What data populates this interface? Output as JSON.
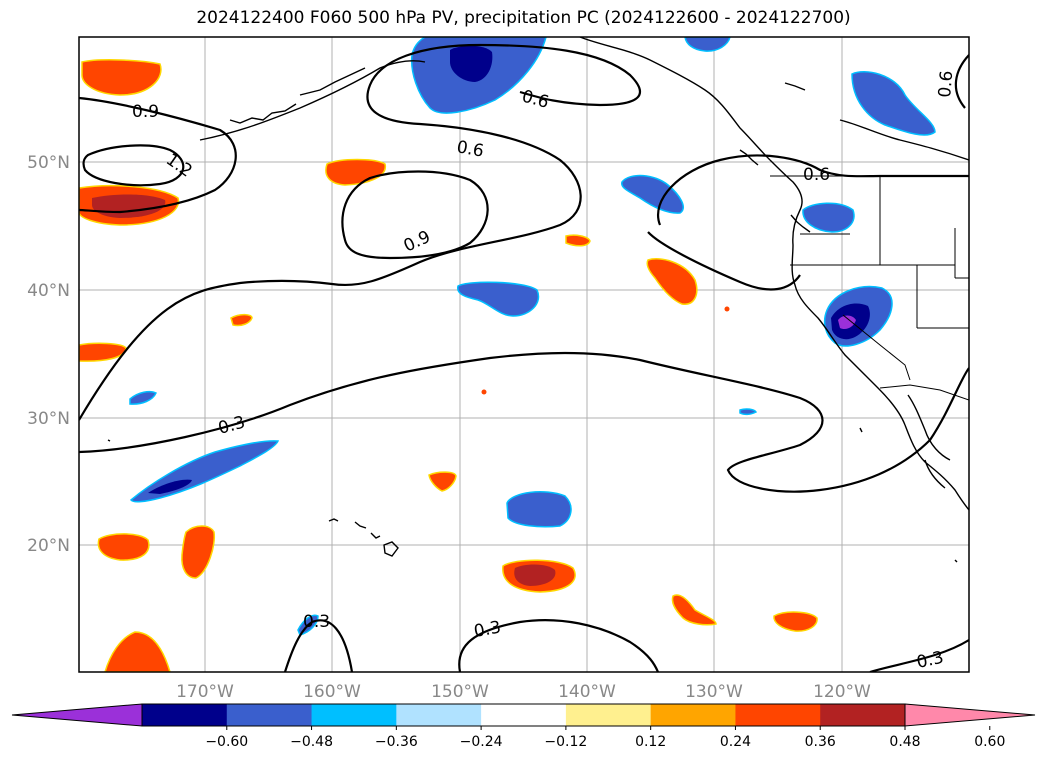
{
  "title": "2024122400 F060 500 hPa PV, precipitation PC (2024122600 - 2024122700)",
  "axes": {
    "x_ticks": [
      "170°W",
      "160°W",
      "150°W",
      "140°W",
      "130°W",
      "120°W"
    ],
    "y_ticks": [
      "50°N",
      "40°N",
      "30°N",
      "20°N"
    ]
  },
  "contour_labels": [
    "0.9",
    "1.2",
    "0.6",
    "0.6",
    "0.6",
    "0.6",
    "0.9",
    "0.3",
    "0.3",
    "0.3",
    "0.3"
  ],
  "colorbar": {
    "ticks": [
      "−0.60",
      "−0.48",
      "−0.36",
      "−0.24",
      "−0.12",
      "0.12",
      "0.24",
      "0.36",
      "0.48",
      "0.60"
    ],
    "colors": [
      "#9b30d9",
      "#00008b",
      "#3a5fcd",
      "#00bfff",
      "#b0e2ff",
      "#ffffff",
      "#fff08f",
      "#ffa500",
      "#ff4500",
      "#b22222",
      "#ff88aa"
    ]
  }
}
